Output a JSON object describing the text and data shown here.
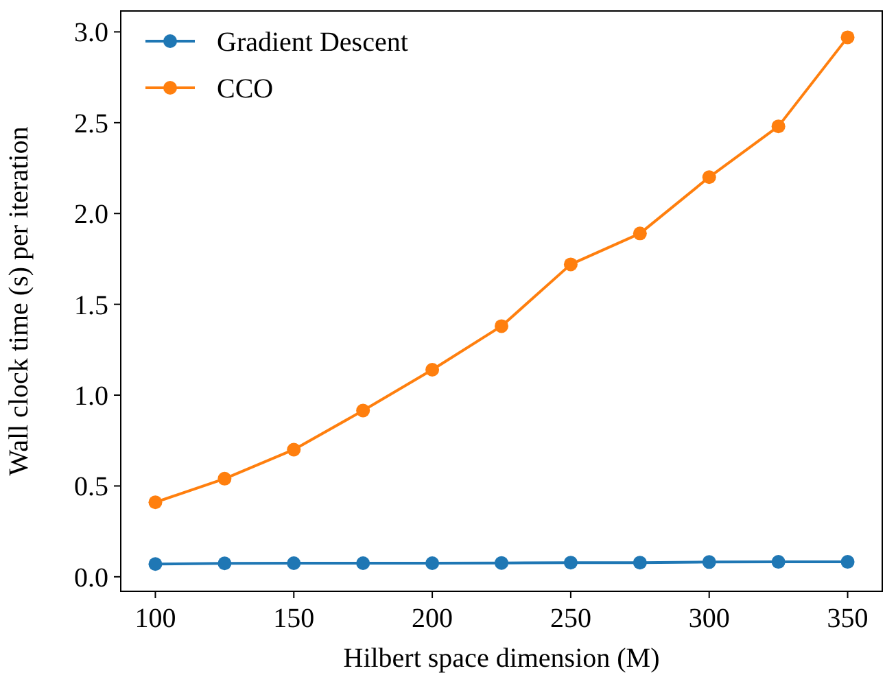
{
  "chart_data": {
    "type": "line",
    "xlabel": "Hilbert space dimension (M)",
    "ylabel": "Wall clock time (s) per iteration",
    "x": [
      100,
      125,
      150,
      175,
      200,
      225,
      250,
      275,
      300,
      325,
      350
    ],
    "series": [
      {
        "name": "Gradient Descent",
        "color": "#1f77b4",
        "values": [
          0.07,
          0.074,
          0.075,
          0.075,
          0.075,
          0.076,
          0.078,
          0.078,
          0.081,
          0.082,
          0.082
        ]
      },
      {
        "name": "CCO",
        "color": "#ff7f0e",
        "values": [
          0.41,
          0.54,
          0.7,
          0.915,
          1.14,
          1.38,
          1.72,
          1.89,
          2.2,
          2.48,
          2.97
        ]
      }
    ],
    "xlim": [
      87.5,
      362.5
    ],
    "xticks": [
      100,
      150,
      200,
      250,
      300,
      350
    ],
    "ylim": [
      -0.08,
      3.115
    ],
    "yticks": [
      {
        "value": 0,
        "label": "0.0"
      },
      {
        "value": 0.5,
        "label": "0.5"
      },
      {
        "value": 1,
        "label": "1.0"
      },
      {
        "value": 1.5,
        "label": "1.5"
      },
      {
        "value": 2,
        "label": "2.0"
      },
      {
        "value": 2.5,
        "label": "2.5"
      },
      {
        "value": 3,
        "label": "3.0"
      }
    ],
    "legend": "top left",
    "marker": "circle",
    "line_style": "solid",
    "grid": false
  }
}
